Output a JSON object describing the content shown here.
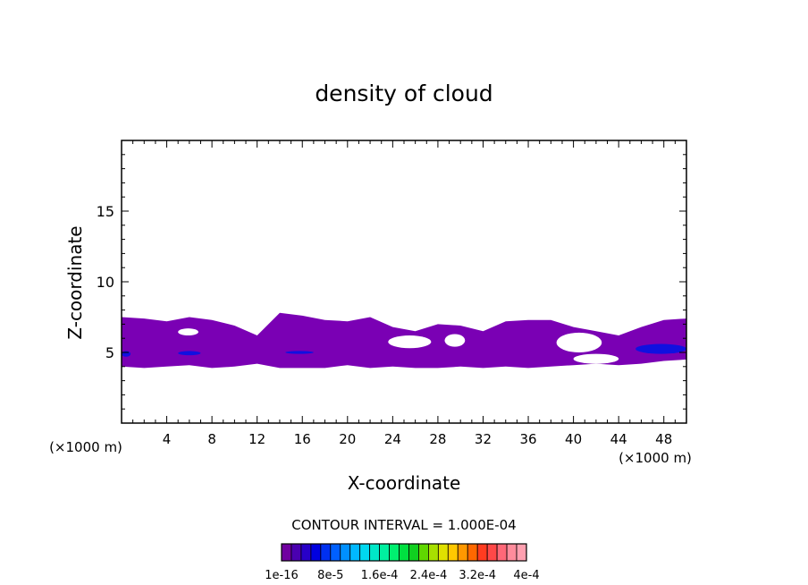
{
  "chart_data": {
    "type": "heatmap",
    "title": "density of cloud",
    "xlabel": "X-coordinate",
    "ylabel": "Z-coordinate",
    "x_unit": "(×1000 m)",
    "x_unit_right": "(×1000 m)",
    "xlim": [
      0,
      50
    ],
    "ylim": [
      0,
      20
    ],
    "x_ticks": [
      4,
      8,
      12,
      16,
      20,
      24,
      28,
      32,
      36,
      40,
      44,
      48
    ],
    "y_ticks": [
      5,
      10,
      15
    ],
    "contour_interval_text": "CONTOUR INTERVAL = 1.000E-04",
    "colorbar_labels": [
      "1e-16",
      "8e-5",
      "1.6e-4",
      "2.4e-4",
      "3.2e-4",
      "4e-4"
    ],
    "colorbar_colors": [
      "#7000a0",
      "#4a00b0",
      "#2800c8",
      "#0000e0",
      "#0030f0",
      "#0060ff",
      "#0090ff",
      "#00b8ff",
      "#00d8f0",
      "#00e8c8",
      "#00f0a0",
      "#00f070",
      "#00e040",
      "#10d020",
      "#60d800",
      "#a8e000",
      "#e0e000",
      "#ffc800",
      "#ff9800",
      "#ff6800",
      "#ff3c20",
      "#ff4848",
      "#ff6878",
      "#ff8c9c",
      "#ffa0b0"
    ],
    "cloud_color": "#7a00b4",
    "core_color": "#1010e0",
    "cloud_band": {
      "x": [
        0,
        2,
        4,
        6,
        8,
        10,
        12,
        14,
        16,
        18,
        20,
        22,
        24,
        26,
        28,
        30,
        32,
        34,
        36,
        38,
        40,
        42,
        44,
        46,
        48,
        50
      ],
      "top": [
        7.5,
        7.4,
        7.2,
        7.5,
        7.3,
        6.9,
        6.2,
        7.8,
        7.6,
        7.3,
        7.2,
        7.5,
        6.8,
        6.5,
        7.0,
        6.9,
        6.5,
        7.2,
        7.3,
        7.3,
        6.8,
        6.5,
        6.2,
        6.8,
        7.3,
        7.4
      ],
      "bottom": [
        4.0,
        3.9,
        4.0,
        4.1,
        3.9,
        4.0,
        4.2,
        3.9,
        3.9,
        3.9,
        4.1,
        3.9,
        4.0,
        3.9,
        3.9,
        4.0,
        3.9,
        4.0,
        3.9,
        4.0,
        4.1,
        4.2,
        4.1,
        4.2,
        4.4,
        4.5
      ]
    },
    "cloud_gaps": [
      {
        "x": [
          23.6,
          27.4
        ],
        "z": [
          5.3,
          6.2
        ]
      },
      {
        "x": [
          28.6,
          30.4
        ],
        "z": [
          5.4,
          6.3
        ]
      },
      {
        "x": [
          38.5,
          42.5
        ],
        "z": [
          5.0,
          6.4
        ]
      },
      {
        "x": [
          5.0,
          6.8
        ],
        "z": [
          6.2,
          6.7
        ]
      },
      {
        "x": [
          40.0,
          44.0
        ],
        "z": [
          4.2,
          4.9
        ]
      }
    ],
    "dense_cores": [
      {
        "x": [
          0,
          0.8
        ],
        "z": [
          4.7,
          5.1
        ]
      },
      {
        "x": [
          5.0,
          7.0
        ],
        "z": [
          4.8,
          5.1
        ]
      },
      {
        "x": [
          14.5,
          17.0
        ],
        "z": [
          4.9,
          5.1
        ]
      },
      {
        "x": [
          45.5,
          50.0
        ],
        "z": [
          4.9,
          5.6
        ]
      }
    ]
  }
}
